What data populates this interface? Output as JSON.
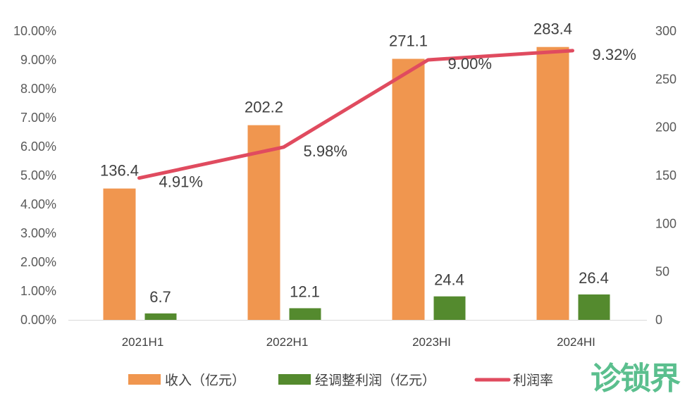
{
  "chart_data": {
    "type": "bar+line",
    "categories": [
      "2021H1",
      "2022H1",
      "2023HI",
      "2024HI"
    ],
    "series": [
      {
        "name": "收入（亿元）",
        "type": "bar",
        "axis": "right",
        "color": "#F0964F",
        "values": [
          136.4,
          202.2,
          271.1,
          283.4
        ],
        "labels": [
          "136.4",
          "202.2",
          "271.1",
          "283.4"
        ]
      },
      {
        "name": "经调整利润（亿元）",
        "type": "bar",
        "axis": "right",
        "color": "#548A2E",
        "values": [
          6.7,
          12.1,
          24.4,
          26.4
        ],
        "labels": [
          "6.7",
          "12.1",
          "24.4",
          "26.4"
        ]
      },
      {
        "name": "利润率",
        "type": "line",
        "axis": "left",
        "color": "#E04B5F",
        "values": [
          4.91,
          5.98,
          9.0,
          9.32
        ],
        "labels": [
          "4.91%",
          "5.98%",
          "9.00%",
          "9.32%"
        ]
      }
    ],
    "left_axis": {
      "ylim": [
        0,
        10
      ],
      "ticks": [
        "0.00%",
        "1.00%",
        "2.00%",
        "3.00%",
        "4.00%",
        "5.00%",
        "6.00%",
        "7.00%",
        "8.00%",
        "9.00%",
        "10.00%"
      ]
    },
    "right_axis": {
      "ylim": [
        0,
        300
      ],
      "ticks": [
        "0",
        "50",
        "100",
        "150",
        "200",
        "250",
        "300"
      ]
    },
    "legend_position": "bottom",
    "grid": false
  },
  "watermark": "诊锁界"
}
